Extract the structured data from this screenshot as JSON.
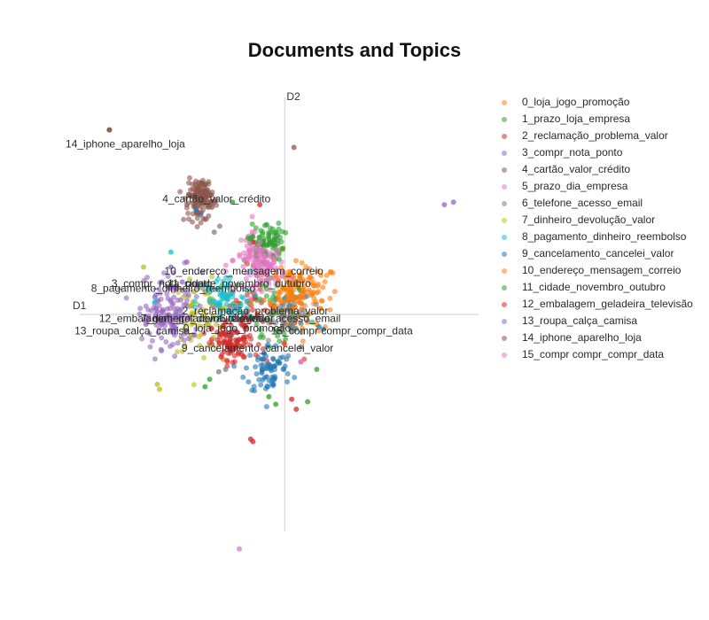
{
  "title": "Documents and Topics",
  "chart_data": {
    "type": "scatter",
    "title": "Documents and Topics",
    "xlabel": "D1",
    "ylabel": "D2",
    "xlim": [
      -9,
      8.5
    ],
    "ylim": [
      -8.7,
      8.7
    ],
    "grid": false,
    "legend": "right",
    "series": [
      {
        "name": "0_loja_jogo_promoção",
        "color": "#ff7f0e",
        "centroid": [
          1.0,
          0.7
        ],
        "spread": 0.9,
        "points": [
          [
            1.2,
            0.8
          ],
          [
            0.6,
            1.1
          ],
          [
            1.4,
            -0.4
          ],
          [
            0.3,
            0.6
          ],
          [
            1.1,
            1.5
          ],
          [
            0.0,
            -1.2
          ],
          [
            -3.3,
            0.5
          ]
        ],
        "label": "0_loja_jogo_promoção",
        "label_pos": [
          -2.1,
          -0.7
        ]
      },
      {
        "name": "1_prazo_loja_empresa",
        "color": "#2ca02c",
        "centroid": [
          -0.7,
          0.2
        ],
        "spread": 1.2,
        "points": [
          [
            -0.9,
            2.4
          ],
          [
            -0.8,
            3.6
          ],
          [
            -2.3,
            4.5
          ],
          [
            1.4,
            -2.2
          ],
          [
            -3.3,
            -2.6
          ],
          [
            -3.5,
            -2.9
          ],
          [
            -0.4,
            -3.6
          ],
          [
            -0.7,
            -3.3
          ]
        ],
        "label": "",
        "label_pos": null
      },
      {
        "name": "2_reclamação_problema_valor",
        "color": "#d62728",
        "centroid": [
          -1.6,
          0.0
        ],
        "spread": 1.2,
        "points": [
          [
            -1.8,
            -0.9
          ],
          [
            -2.3,
            -1.4
          ],
          [
            -1.2,
            2.8
          ],
          [
            -1.1,
            4.4
          ],
          [
            0.3,
            -3.4
          ],
          [
            0.5,
            -3.8
          ],
          [
            -1.5,
            -5.0
          ],
          [
            -1.4,
            -5.1
          ],
          [
            -3.2,
            -1.0
          ]
        ],
        "label": "2_reclamação_problema_valor",
        "label_pos": [
          -1.3,
          0.0
        ]
      },
      {
        "name": "3_compr_nota_ponto",
        "color": "#9467bd",
        "centroid": [
          -5.0,
          0.5
        ],
        "spread": 0.9,
        "points": [
          [
            -5.4,
            1.3
          ],
          [
            -5.7,
            0.7
          ],
          [
            -5.0,
            1.9
          ],
          [
            -4.3,
            2.1
          ],
          [
            -6.0,
            -0.2
          ],
          [
            -3.5,
            0.9
          ],
          [
            7.0,
            4.4
          ],
          [
            7.4,
            4.5
          ]
        ],
        "label": "3_compr_nota_ponto",
        "label_pos": [
          -5.4,
          1.1
        ]
      },
      {
        "name": "4_cartão_valor_crédito",
        "color": "#8c564b",
        "centroid": [
          -3.7,
          4.5
        ],
        "spread": 0.5,
        "points": [
          [
            -3.8,
            5.1
          ],
          [
            -3.5,
            4.8
          ],
          [
            -3.2,
            4.3
          ],
          [
            -4.0,
            4.7
          ],
          [
            -3.4,
            5.0
          ],
          [
            -7.7,
            7.4
          ],
          [
            0.4,
            6.7
          ],
          [
            -3.2,
            -1.2
          ]
        ],
        "label": "4_cartão_valor_crédito",
        "label_pos": [
          -3.0,
          4.5
        ]
      },
      {
        "name": "5_prazo_dia_empresa",
        "color": "#e377c2",
        "centroid": [
          -1.2,
          2.2
        ],
        "spread": 0.7,
        "points": [
          [
            -1.0,
            2.6
          ],
          [
            -1.4,
            2.9
          ],
          [
            -0.6,
            1.9
          ],
          [
            -1.8,
            2.2
          ],
          [
            0.7,
            -1.9
          ],
          [
            -2.0,
            -9.4
          ]
        ],
        "label": "",
        "label_pos": null
      },
      {
        "name": "6_telefone_acesso_email",
        "color": "#7f7f7f",
        "centroid": [
          0.3,
          0.1
        ],
        "spread": 0.6,
        "points": [
          [
            0.3,
            0.2
          ],
          [
            0.6,
            0.0
          ],
          [
            -0.5,
            -1.8
          ],
          [
            -2.6,
            -2.2
          ],
          [
            -2.9,
            -2.3
          ],
          [
            -3.1,
            3.3
          ],
          [
            0.7,
            -1.3
          ]
        ],
        "label": "6_telefone_acesso_email",
        "label_pos": [
          -0.2,
          -0.3
        ]
      },
      {
        "name": "7_dinheiro_devolução_valor",
        "color": "#bcbd22",
        "centroid": [
          -3.6,
          -0.1
        ],
        "spread": 0.9,
        "points": [
          [
            -4.0,
            0.0
          ],
          [
            -4.4,
            -0.6
          ],
          [
            -3.2,
            0.4
          ],
          [
            -6.2,
            1.9
          ],
          [
            -5.6,
            -2.8
          ],
          [
            -5.5,
            -3.0
          ]
        ],
        "label": "7_dinheiro_devolução_valor",
        "label_pos": [
          -3.4,
          -0.3
        ]
      },
      {
        "name": "8_pagamento_dinheiro_reembolso",
        "color": "#17becf",
        "centroid": [
          -2.7,
          0.5
        ],
        "spread": 0.8,
        "points": [
          [
            -2.4,
            0.8
          ],
          [
            -3.0,
            0.4
          ],
          [
            -2.0,
            0.1
          ],
          [
            -5.0,
            2.5
          ],
          [
            -5.7,
            0.5
          ]
        ],
        "label": "8_pagamento_dinheiro_reembolso",
        "label_pos": [
          -4.9,
          0.9
        ]
      },
      {
        "name": "9_cancelamento_cancelei_valor",
        "color": "#1f77b4",
        "centroid": [
          -0.7,
          -2.2
        ],
        "spread": 0.7,
        "points": [
          [
            -0.8,
            -2.5
          ],
          [
            -0.5,
            -2.8
          ],
          [
            -1.0,
            -2.2
          ],
          [
            -0.3,
            -1.9
          ],
          [
            -3.7,
            4.0
          ],
          [
            -3.9,
            4.2
          ],
          [
            1.5,
            -0.5
          ],
          [
            1.7,
            -0.6
          ]
        ],
        "label": "9_cancelamento_cancelei_valor",
        "label_pos": [
          -1.2,
          -1.5
        ]
      },
      {
        "name": "10_endereço_mensagem_correio",
        "color": "#ff7f0e",
        "centroid": [
          0.2,
          1.1
        ],
        "spread": 0.6,
        "points": [
          [
            0.4,
            1.3
          ],
          [
            0.0,
            1.0
          ],
          [
            0.6,
            0.7
          ],
          [
            -2.7,
            -1.8
          ],
          [
            -0.1,
            2.6
          ]
        ],
        "label": "10_endereço_mensagem_correio",
        "label_pos": [
          -1.8,
          1.6
        ]
      },
      {
        "name": "11_cidade_novembro_outubro",
        "color": "#2ca02c",
        "centroid": [
          -0.8,
          2.9
        ],
        "spread": 0.5,
        "points": [
          [
            -0.7,
            3.1
          ],
          [
            -1.0,
            2.8
          ],
          [
            -0.4,
            3.3
          ],
          [
            -0.9,
            2.5
          ],
          [
            1.0,
            -3.5
          ]
        ],
        "label": "11_cidade_novembro_outubro",
        "label_pos": [
          -2.0,
          1.1
        ]
      },
      {
        "name": "12_embalagem_geladeira_televisão",
        "color": "#d62728",
        "centroid": [
          -2.3,
          -1.2
        ],
        "spread": 0.6,
        "points": [
          [
            -2.5,
            -1.3
          ],
          [
            -2.0,
            -1.0
          ],
          [
            -2.8,
            -1.7
          ],
          [
            -1.9,
            -1.6
          ],
          [
            -1.4,
            2.9
          ]
        ],
        "label": "12_embalagem_geladeira_televisão",
        "label_pos": [
          -4.4,
          -0.3
        ]
      },
      {
        "name": "13_roupa_calça_camisa",
        "color": "#9467bd",
        "centroid": [
          -5.1,
          -0.3
        ],
        "spread": 0.7,
        "points": [
          [
            -5.3,
            -0.2
          ],
          [
            -4.8,
            -0.6
          ],
          [
            -5.6,
            0.1
          ],
          [
            -4.5,
            1.3
          ],
          [
            -6.1,
            -0.4
          ]
        ],
        "label": "13_roupa_calça_camisa",
        "label_pos": [
          -6.7,
          -0.8
        ]
      },
      {
        "name": "14_iphone_aparelho_loja",
        "color": "#8c564b",
        "centroid": [
          -3.7,
          4.8
        ],
        "spread": 0.4,
        "points": [
          [
            -3.9,
            4.9
          ],
          [
            -3.5,
            5.2
          ],
          [
            -3.6,
            4.5
          ],
          [
            -7.7,
            7.4
          ]
        ],
        "label": "14_iphone_aparelho_loja",
        "label_pos": [
          -7.0,
          6.7
        ]
      },
      {
        "name": "15_compr compr_compr_data",
        "color": "#e377c2",
        "centroid": [
          -0.9,
          1.9
        ],
        "spread": 0.6,
        "points": [
          [
            -0.8,
            2.0
          ],
          [
            -1.1,
            1.7
          ],
          [
            -0.5,
            2.2
          ],
          [
            0.7,
            -1.9
          ]
        ],
        "label": "15_compr compr_compr_data",
        "label_pos": [
          2.5,
          -0.8
        ]
      }
    ]
  }
}
